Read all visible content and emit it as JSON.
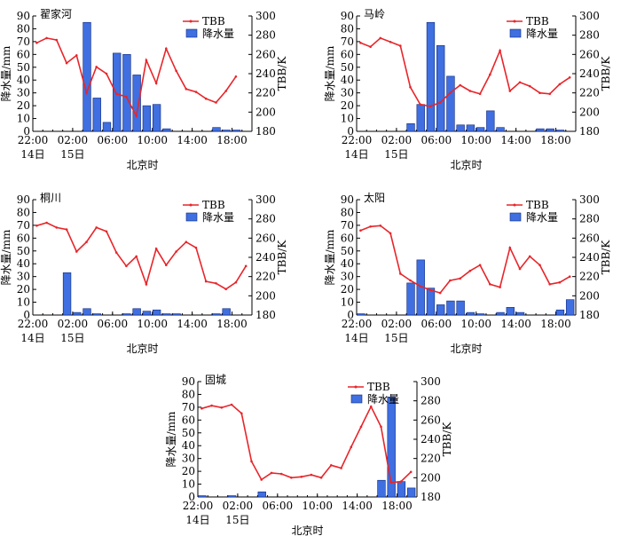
{
  "common": {
    "xlabel": "北京时",
    "ylabel_left": "降水量/mm",
    "ylabel_right": "TBB/K",
    "legend_tbb": "TBB",
    "legend_rain": "降水量",
    "x_tick_labels": [
      "22:00",
      "02:00",
      "06:00",
      "10:00",
      "14:00",
      "18:00"
    ],
    "date_labels": [
      "14日",
      "15日"
    ],
    "colors": {
      "tbb_line": "#e8252a",
      "rain_bar": "#3f6fe0",
      "rain_bar_edge": "#102a80"
    }
  },
  "chart_data": [
    {
      "type": "bar",
      "title": "翟家河",
      "ylim": [
        0,
        90
      ],
      "y2lim": [
        180,
        300
      ],
      "x_hours": [
        22,
        23,
        24,
        25,
        26,
        27,
        28,
        29,
        30,
        31,
        32,
        33,
        34,
        35,
        36,
        37,
        38,
        39,
        40,
        41,
        42,
        43
      ],
      "rain": [
        0,
        0,
        0,
        0,
        0,
        85,
        26,
        7,
        61,
        60,
        44,
        20,
        21,
        2,
        0,
        0,
        0,
        0,
        3,
        1,
        1,
        0
      ],
      "tbb": [
        272,
        277,
        275,
        251,
        259,
        220,
        247,
        240,
        219,
        216,
        196,
        254,
        230,
        266,
        243,
        224,
        221,
        214,
        210,
        222,
        237,
        null
      ]
    },
    {
      "type": "bar",
      "title": "马岭",
      "ylim": [
        0,
        90
      ],
      "y2lim": [
        180,
        300
      ],
      "x_hours": [
        22,
        23,
        24,
        25,
        26,
        27,
        28,
        29,
        30,
        31,
        32,
        33,
        34,
        35,
        36,
        37,
        38,
        39,
        40,
        41,
        42,
        43
      ],
      "rain": [
        0,
        0,
        0,
        0,
        0,
        6,
        21,
        85,
        67,
        43,
        5,
        5,
        3,
        16,
        3,
        0,
        0,
        0,
        2,
        2,
        1,
        0
      ],
      "tbb": [
        272,
        268,
        277,
        273,
        269,
        226,
        208,
        206,
        210,
        220,
        228,
        222,
        219,
        239,
        264,
        222,
        231,
        227,
        220,
        219,
        229,
        236
      ]
    },
    {
      "type": "bar",
      "title": "桐川",
      "ylim": [
        0,
        90
      ],
      "y2lim": [
        180,
        300
      ],
      "x_hours": [
        22,
        23,
        24,
        25,
        26,
        27,
        28,
        29,
        30,
        31,
        32,
        33,
        34,
        35,
        36,
        37,
        38,
        39,
        40,
        41,
        42,
        43
      ],
      "rain": [
        0,
        0,
        0,
        33,
        2,
        5,
        1,
        0,
        0,
        1,
        5,
        3,
        4,
        1,
        1,
        0,
        0,
        0,
        1,
        5,
        0,
        0
      ],
      "tbb": [
        273,
        276,
        271,
        269,
        246,
        256,
        271,
        267,
        245,
        231,
        241,
        212,
        249,
        232,
        246,
        256,
        250,
        215,
        213,
        207,
        214,
        231
      ]
    },
    {
      "type": "bar",
      "title": "太阳",
      "ylim": [
        0,
        90
      ],
      "y2lim": [
        180,
        300
      ],
      "x_hours": [
        22,
        23,
        24,
        25,
        26,
        27,
        28,
        29,
        30,
        31,
        32,
        33,
        34,
        35,
        36,
        37,
        38,
        39,
        40,
        41,
        42,
        43
      ],
      "rain": [
        1,
        0,
        0,
        0,
        0,
        25,
        43,
        21,
        8,
        11,
        11,
        2,
        1,
        0,
        2,
        6,
        2,
        0,
        0,
        0,
        4,
        12
      ],
      "tbb": [
        268,
        272,
        273,
        265,
        223,
        216,
        210,
        206,
        203,
        216,
        218,
        226,
        232,
        212,
        209,
        250,
        228,
        241,
        232,
        212,
        214,
        220
      ]
    },
    {
      "type": "bar",
      "title": "固城",
      "ylim": [
        0,
        90
      ],
      "y2lim": [
        180,
        300
      ],
      "x_hours": [
        22,
        23,
        24,
        25,
        26,
        27,
        28,
        29,
        30,
        31,
        32,
        33,
        34,
        35,
        36,
        37,
        38,
        39,
        40,
        41,
        42,
        43
      ],
      "rain": [
        1,
        0,
        0,
        1,
        0,
        0,
        4,
        0,
        0,
        0,
        0,
        0,
        0,
        0,
        0,
        0,
        0,
        0,
        13,
        78,
        12,
        7
      ],
      "tbb": [
        272,
        275,
        273,
        276,
        267,
        217,
        198,
        205,
        204,
        200,
        201,
        203,
        200,
        213,
        210,
        232,
        253,
        274,
        253,
        195,
        196,
        206
      ]
    }
  ]
}
